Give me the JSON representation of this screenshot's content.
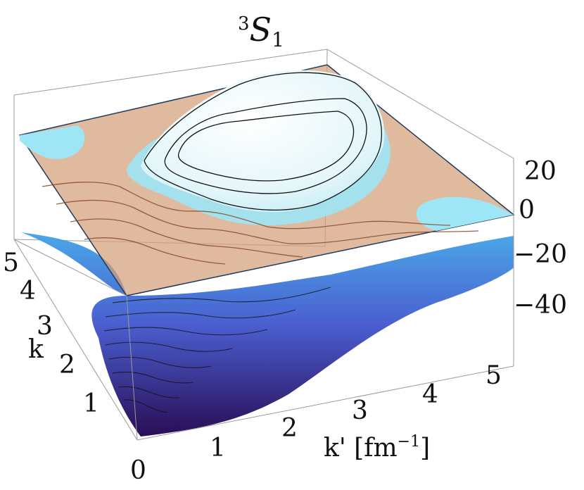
{
  "chart_data": {
    "type": "surface3d",
    "title": {
      "sup": "3",
      "main": "S",
      "sub": "1"
    },
    "xlabel": "k' [fm",
    "xlabel_sup": "−1",
    "xlabel_close": "]",
    "ylabel": "k",
    "zlabel": "",
    "x_ticks": [
      "0",
      "1",
      "2",
      "3",
      "4",
      "5"
    ],
    "y_ticks": [
      "1",
      "2",
      "3",
      "4",
      "5"
    ],
    "z_ticks": [
      "20",
      "0",
      "−20",
      "−40"
    ],
    "xlim": [
      0,
      5
    ],
    "ylim": [
      0,
      5
    ],
    "zlim": [
      -55,
      30
    ],
    "reference_plane_z": 0,
    "surface_regions": [
      {
        "name": "positive-peak",
        "center": [
          3.2,
          3.2
        ],
        "max_value": 30
      },
      {
        "name": "deep-well",
        "center": [
          0,
          0
        ],
        "min_value": -55
      }
    ],
    "colors": {
      "plane": "#d2a078",
      "plane_edge": "#1f3a5a",
      "peak": "#e6f7fa",
      "shelf": "#9ee6f5",
      "well_top": "#4aa8e8",
      "well_mid": "#4a5fd0",
      "well_bottom": "#2a0d55",
      "contour_dark": "#111111",
      "contour_plane": "#8a4a2a"
    }
  }
}
